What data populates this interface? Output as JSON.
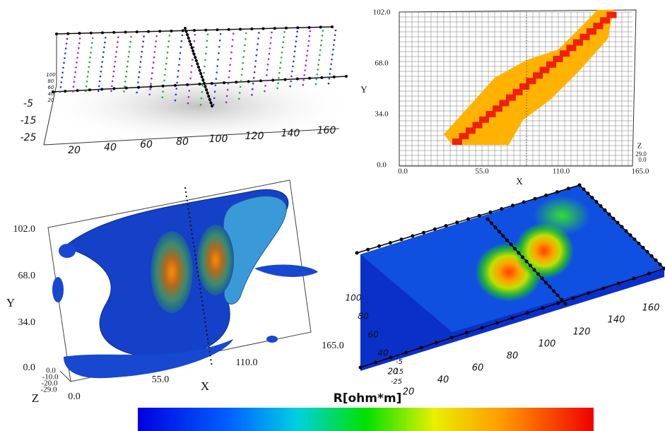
{
  "top_left": {
    "x_ticks": [
      "20",
      "40",
      "60",
      "80",
      "100",
      "120",
      "140",
      "160"
    ],
    "z_ticks": [
      "-5",
      "-15",
      "-25"
    ],
    "y_ticks": [
      "100",
      "80",
      "60",
      "40",
      "20"
    ]
  },
  "top_right": {
    "x_label": "X",
    "y_label": "Y",
    "z_label": "Z",
    "x_ticks": [
      "0.0",
      "55.0",
      "110.0",
      "165.0"
    ],
    "y_ticks": [
      "102.0",
      "68.0",
      "34.0",
      "0.0"
    ],
    "z_ticks": [
      "29.0",
      "0.0"
    ]
  },
  "bottom_left": {
    "x_label": "X",
    "y_label": "Y",
    "z_label": "Z",
    "x_ticks": [
      "0.0",
      "55.0",
      "110.0",
      "165.0"
    ],
    "y_ticks": [
      "102.0",
      "68.0",
      "34.0",
      "0.0"
    ],
    "z_ticks": [
      "0.0",
      "-10.0",
      "-20.0",
      "-29.0"
    ]
  },
  "bottom_right": {
    "x_ticks": [
      "20",
      "40",
      "60",
      "80",
      "100",
      "120",
      "140",
      "160"
    ],
    "y_ticks": [
      "100",
      "80",
      "60",
      "40",
      "20"
    ],
    "z_ticks": [
      "-5",
      "-15",
      "-25"
    ]
  },
  "colorbar": {
    "title": "R[ohm*m]"
  }
}
